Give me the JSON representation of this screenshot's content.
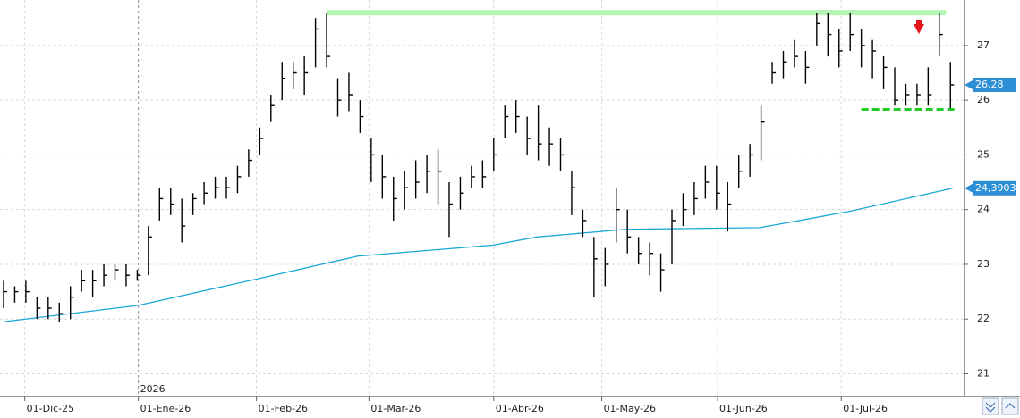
{
  "chart_data": {
    "type": "ohlc",
    "xlim": [
      0,
      86
    ],
    "ylim": [
      20.6,
      27.83
    ],
    "yticks": [
      21,
      22,
      23,
      24,
      25,
      26,
      27
    ],
    "xticks": [
      {
        "value": 1.9,
        "label": "01-Dic-25"
      },
      {
        "value": 12.1,
        "label": "01-Ene-26"
      },
      {
        "value": 22.7,
        "label": "01-Feb-26"
      },
      {
        "value": 32.8,
        "label": "01-Mar-26"
      },
      {
        "value": 44,
        "label": "01-Abr-26"
      },
      {
        "value": 53.7,
        "label": "01-May-26"
      },
      {
        "value": 64.1,
        "label": "01-Jun-26"
      },
      {
        "value": 75.2,
        "label": "01-Jul-26"
      }
    ],
    "grid": true,
    "year_divider": {
      "value": 12.1,
      "label": "2026"
    },
    "bar_color": "#000000",
    "high": [
      22.7,
      22.6,
      22.7,
      22.4,
      22.4,
      22.3,
      22.6,
      22.9,
      22.9,
      23.0,
      23.0,
      23.0,
      22.9,
      23.7,
      24.4,
      24.4,
      24.2,
      24.3,
      24.5,
      24.6,
      24.6,
      24.8,
      25.1,
      25.5,
      26.1,
      26.7,
      26.7,
      26.8,
      27.5,
      27.6,
      26.4,
      26.5,
      26.0,
      25.3,
      25.0,
      24.6,
      24.7,
      24.9,
      25.0,
      25.1,
      24.5,
      24.6,
      24.8,
      24.9,
      25.3,
      25.9,
      26.0,
      25.7,
      25.9,
      25.5,
      25.3,
      24.7,
      24.0,
      23.5,
      23.3,
      24.4,
      24.0,
      23.5,
      23.4,
      23.2,
      24.0,
      24.3,
      24.5,
      24.8,
      24.8,
      24.5,
      25.0,
      25.2,
      25.9,
      26.7,
      26.9,
      27.1,
      26.9,
      27.6,
      27.6,
      27.3,
      27.6,
      27.3,
      27.1,
      26.8,
      26.6,
      26.3,
      26.3,
      26.6,
      27.6,
      26.7
    ],
    "low": [
      22.2,
      22.3,
      22.3,
      22.0,
      22.0,
      21.95,
      22.0,
      22.5,
      22.4,
      22.6,
      22.7,
      22.6,
      22.7,
      22.8,
      23.8,
      23.9,
      23.4,
      23.9,
      24.1,
      24.2,
      24.2,
      24.3,
      24.6,
      25.0,
      25.6,
      26.0,
      26.2,
      26.1,
      26.6,
      26.6,
      25.7,
      25.8,
      25.4,
      24.5,
      24.2,
      23.8,
      24.0,
      24.2,
      24.3,
      24.1,
      23.5,
      24.0,
      24.4,
      24.4,
      24.7,
      25.3,
      25.4,
      25.0,
      24.9,
      24.8,
      24.7,
      23.9,
      23.5,
      22.4,
      22.6,
      23.4,
      23.2,
      23.0,
      22.8,
      22.5,
      23.0,
      23.7,
      23.9,
      24.2,
      24.0,
      23.6,
      24.4,
      24.6,
      24.9,
      26.3,
      26.4,
      26.6,
      26.3,
      27.0,
      26.8,
      26.6,
      26.9,
      26.6,
      26.4,
      26.2,
      25.9,
      25.9,
      25.9,
      25.9,
      26.8,
      25.85
    ],
    "close": [
      22.5,
      22.5,
      22.5,
      22.2,
      22.2,
      22.1,
      22.4,
      22.7,
      22.7,
      22.8,
      22.9,
      22.8,
      22.8,
      23.5,
      24.2,
      24.1,
      23.7,
      24.2,
      24.3,
      24.4,
      24.4,
      24.6,
      24.9,
      25.3,
      25.9,
      26.4,
      26.5,
      26.5,
      27.3,
      26.8,
      26.0,
      26.1,
      25.7,
      25.0,
      24.6,
      24.2,
      24.4,
      24.5,
      24.7,
      24.7,
      24.1,
      24.3,
      24.6,
      24.6,
      25.0,
      25.7,
      25.7,
      25.3,
      25.2,
      25.2,
      25.0,
      24.4,
      23.8,
      23.1,
      23.0,
      24.0,
      23.5,
      23.2,
      23.2,
      22.9,
      23.8,
      24.0,
      24.2,
      24.5,
      24.3,
      24.1,
      24.7,
      25.0,
      25.6,
      26.5,
      26.7,
      26.8,
      26.6,
      27.4,
      27.2,
      26.9,
      27.2,
      27.0,
      26.9,
      26.6,
      26.0,
      26.1,
      26.1,
      26.1,
      27.2,
      26.28
    ],
    "moving_average": {
      "color": "#1aa7d6",
      "x": [
        0,
        12.1,
        22.7,
        31.8,
        43.9,
        47.9,
        55.9,
        67.9,
        76,
        85.2
      ],
      "values": [
        21.95,
        22.25,
        22.73,
        23.15,
        23.35,
        23.5,
        23.64,
        23.67,
        23.97,
        24.39
      ]
    },
    "lines": [
      {
        "value": 27.6,
        "x": [
          29,
          84.6
        ],
        "color": "#b3f5b3",
        "style": "solid"
      },
      {
        "value": 25.83,
        "x": [
          77,
          85.4
        ],
        "color": "#22cc22",
        "style": "dashed"
      }
    ],
    "price_labels": [
      {
        "value": 26.28,
        "label": "26,28"
      },
      {
        "value": 24.3903,
        "label": "24,3903"
      }
    ]
  }
}
